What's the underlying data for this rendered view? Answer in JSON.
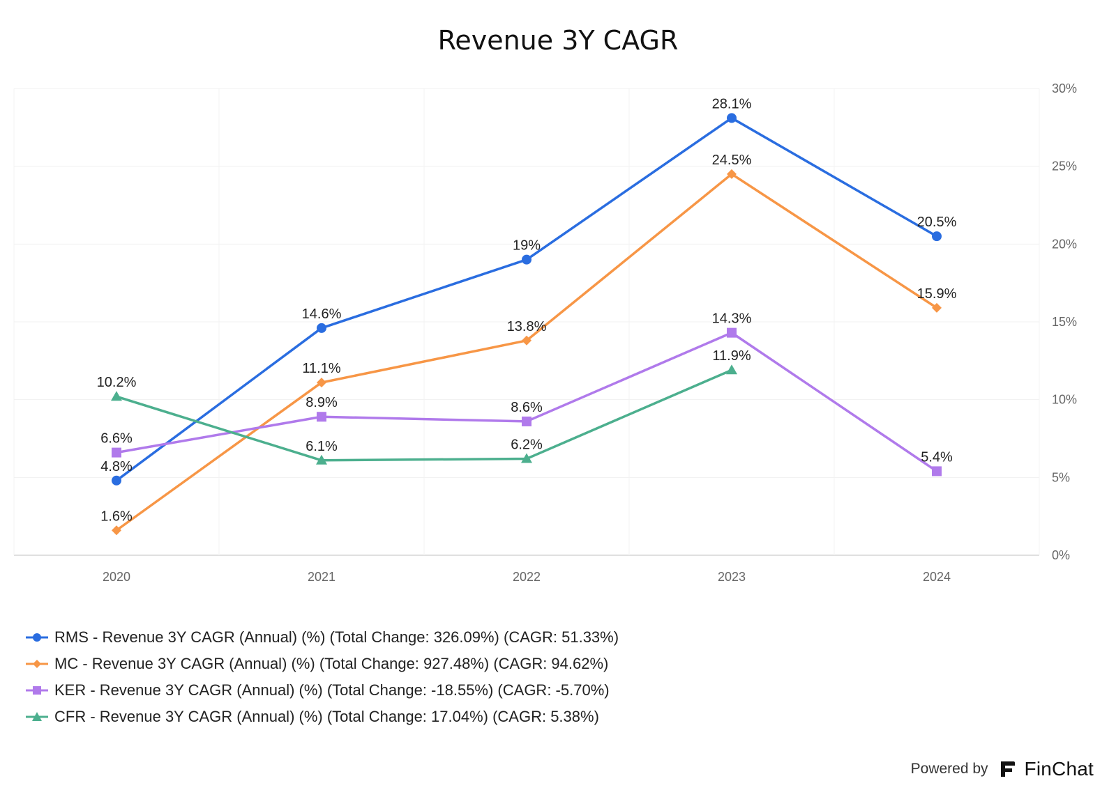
{
  "chart_data": {
    "type": "line",
    "title": "Revenue 3Y CAGR",
    "xlabel": "",
    "ylabel": "",
    "categories": [
      "2020",
      "2021",
      "2022",
      "2023",
      "2024"
    ],
    "y_ticks": [
      "0%",
      "5%",
      "10%",
      "15%",
      "20%",
      "25%",
      "30%"
    ],
    "ylim": [
      0,
      30
    ],
    "y_axis_side": "right",
    "grid": true,
    "legend_position": "bottom-left",
    "series": [
      {
        "name": "RMS - Revenue 3Y CAGR (Annual) (%) (Total Change: 326.09%) (CAGR: 51.33%)",
        "marker": "circle",
        "color": "#2a6de0",
        "values": [
          4.8,
          14.6,
          19,
          28.1,
          20.5
        ],
        "labels": [
          "4.8%",
          "14.6%",
          "19%",
          "28.1%",
          "20.5%"
        ]
      },
      {
        "name": "MC - Revenue 3Y CAGR (Annual) (%) (Total Change: 927.48%) (CAGR: 94.62%)",
        "marker": "diamond",
        "color": "#f79646",
        "values": [
          1.6,
          11.1,
          13.8,
          24.5,
          15.9
        ],
        "labels": [
          "1.6%",
          "11.1%",
          "13.8%",
          "24.5%",
          "15.9%"
        ]
      },
      {
        "name": "KER - Revenue 3Y CAGR (Annual) (%) (Total Change: -18.55%) (CAGR: -5.70%)",
        "marker": "square",
        "color": "#b07aeb",
        "values": [
          6.6,
          8.9,
          8.6,
          14.3,
          5.4
        ],
        "labels": [
          "6.6%",
          "8.9%",
          "8.6%",
          "14.3%",
          "5.4%"
        ]
      },
      {
        "name": "CFR - Revenue 3Y CAGR (Annual) (%) (Total Change: 17.04%) (CAGR: 5.38%)",
        "marker": "triangle",
        "color": "#4caf8e",
        "values": [
          10.2,
          6.1,
          6.2,
          11.9,
          null
        ],
        "labels": [
          "10.2%",
          "6.1%",
          "6.2%",
          "11.9%",
          ""
        ]
      }
    ]
  },
  "footer": {
    "powered_by": "Powered by",
    "brand": "FinChat"
  }
}
